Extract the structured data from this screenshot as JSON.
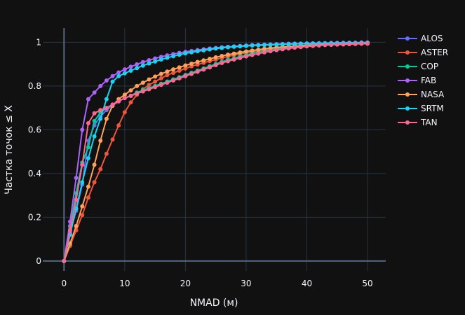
{
  "chart_data": {
    "type": "line",
    "title": "",
    "xlabel": "NMAD (м)",
    "ylabel": "Частка точок ≤ X",
    "xlim": [
      -3.5,
      53
    ],
    "ylim": [
      -0.045,
      1.065
    ],
    "xticks": [
      0,
      10,
      20,
      30,
      40,
      50
    ],
    "yticks": [
      0,
      0.2,
      0.4,
      0.6,
      0.8,
      1
    ],
    "xtick_labels": [
      "0",
      "10",
      "20",
      "30",
      "40",
      "50"
    ],
    "ytick_labels": [
      "0",
      "0.2",
      "0.4",
      "0.6",
      "0.8",
      "1"
    ],
    "grid": true,
    "legend_position": "top-right",
    "x": [
      0,
      1,
      2,
      3,
      4,
      5,
      6,
      7,
      8,
      9,
      10,
      11,
      12,
      13,
      14,
      15,
      16,
      17,
      18,
      19,
      20,
      21,
      22,
      23,
      24,
      25,
      26,
      27,
      28,
      29,
      30,
      31,
      32,
      33,
      34,
      35,
      36,
      37,
      38,
      39,
      40,
      41,
      42,
      43,
      44,
      45,
      46,
      47,
      48,
      49,
      50
    ],
    "series": [
      {
        "name": "ALOS",
        "color": "#636efa",
        "values": [
          0,
          0.13,
          0.23,
          0.35,
          0.55,
          0.62,
          0.66,
          0.69,
          0.71,
          0.73,
          0.745,
          0.755,
          0.77,
          0.78,
          0.79,
          0.8,
          0.81,
          0.82,
          0.83,
          0.84,
          0.85,
          0.86,
          0.87,
          0.88,
          0.89,
          0.9,
          0.91,
          0.92,
          0.925,
          0.935,
          0.94,
          0.95,
          0.955,
          0.96,
          0.965,
          0.97,
          0.973,
          0.976,
          0.979,
          0.982,
          0.984,
          0.986,
          0.988,
          0.99,
          0.991,
          0.992,
          0.993,
          0.994,
          0.995,
          0.996,
          0.997
        ]
      },
      {
        "name": "ASTER",
        "color": "#EF553B",
        "values": [
          0,
          0.07,
          0.14,
          0.21,
          0.29,
          0.36,
          0.42,
          0.49,
          0.555,
          0.62,
          0.68,
          0.725,
          0.76,
          0.785,
          0.805,
          0.82,
          0.835,
          0.85,
          0.86,
          0.87,
          0.88,
          0.89,
          0.898,
          0.906,
          0.914,
          0.921,
          0.928,
          0.935,
          0.941,
          0.947,
          0.952,
          0.957,
          0.962,
          0.966,
          0.97,
          0.973,
          0.976,
          0.979,
          0.981,
          0.983,
          0.985,
          0.987,
          0.988,
          0.989,
          0.99,
          0.991,
          0.992,
          0.993,
          0.993,
          0.994,
          0.994
        ]
      },
      {
        "name": "COP",
        "color": "#00cc96",
        "values": [
          0,
          0.16,
          0.31,
          0.45,
          0.52,
          0.64,
          0.68,
          0.7,
          0.715,
          0.73,
          0.745,
          0.755,
          0.77,
          0.78,
          0.79,
          0.8,
          0.81,
          0.82,
          0.83,
          0.84,
          0.85,
          0.86,
          0.87,
          0.88,
          0.89,
          0.9,
          0.91,
          0.92,
          0.925,
          0.935,
          0.94,
          0.95,
          0.955,
          0.96,
          0.965,
          0.97,
          0.973,
          0.976,
          0.979,
          0.982,
          0.984,
          0.986,
          0.988,
          0.99,
          0.991,
          0.992,
          0.993,
          0.994,
          0.995,
          0.996,
          0.997
        ]
      },
      {
        "name": "FAB",
        "color": "#ab63fa",
        "values": [
          0,
          0.18,
          0.38,
          0.6,
          0.74,
          0.77,
          0.8,
          0.825,
          0.845,
          0.862,
          0.876,
          0.888,
          0.899,
          0.909,
          0.918,
          0.926,
          0.933,
          0.94,
          0.946,
          0.951,
          0.956,
          0.96,
          0.964,
          0.968,
          0.971,
          0.974,
          0.977,
          0.979,
          0.981,
          0.983,
          0.985,
          0.987,
          0.988,
          0.989,
          0.99,
          0.991,
          0.992,
          0.993,
          0.994,
          0.994,
          0.995,
          0.995,
          0.996,
          0.996,
          0.997,
          0.997,
          0.998,
          0.998,
          0.998,
          0.999,
          0.999
        ]
      },
      {
        "name": "NASA",
        "color": "#FFA15A",
        "values": [
          0,
          0.08,
          0.16,
          0.25,
          0.34,
          0.44,
          0.55,
          0.65,
          0.71,
          0.74,
          0.76,
          0.78,
          0.8,
          0.815,
          0.83,
          0.843,
          0.855,
          0.866,
          0.876,
          0.885,
          0.894,
          0.902,
          0.91,
          0.917,
          0.924,
          0.931,
          0.937,
          0.943,
          0.948,
          0.953,
          0.958,
          0.962,
          0.966,
          0.97,
          0.973,
          0.976,
          0.978,
          0.98,
          0.982,
          0.984,
          0.986,
          0.987,
          0.988,
          0.989,
          0.99,
          0.991,
          0.992,
          0.993,
          0.993,
          0.994,
          0.994
        ]
      },
      {
        "name": "SRTM",
        "color": "#19d3f3",
        "values": [
          0,
          0.12,
          0.24,
          0.36,
          0.47,
          0.57,
          0.65,
          0.74,
          0.82,
          0.845,
          0.858,
          0.87,
          0.882,
          0.893,
          0.903,
          0.912,
          0.921,
          0.929,
          0.936,
          0.943,
          0.949,
          0.954,
          0.959,
          0.963,
          0.967,
          0.971,
          0.974,
          0.977,
          0.979,
          0.981,
          0.983,
          0.985,
          0.986,
          0.987,
          0.988,
          0.989,
          0.99,
          0.991,
          0.992,
          0.993,
          0.993,
          0.994,
          0.994,
          0.995,
          0.995,
          0.996,
          0.996,
          0.997,
          0.997,
          0.997,
          0.998
        ]
      },
      {
        "name": "TAN",
        "color": "#FF6692",
        "values": [
          0,
          0.14,
          0.28,
          0.44,
          0.63,
          0.675,
          0.69,
          0.7,
          0.715,
          0.73,
          0.745,
          0.755,
          0.765,
          0.775,
          0.785,
          0.795,
          0.805,
          0.815,
          0.825,
          0.835,
          0.845,
          0.855,
          0.865,
          0.875,
          0.885,
          0.895,
          0.905,
          0.913,
          0.921,
          0.928,
          0.935,
          0.942,
          0.948,
          0.954,
          0.959,
          0.964,
          0.968,
          0.972,
          0.975,
          0.978,
          0.981,
          0.983,
          0.985,
          0.987,
          0.988,
          0.989,
          0.99,
          0.991,
          0.992,
          0.993,
          0.994
        ]
      }
    ]
  }
}
